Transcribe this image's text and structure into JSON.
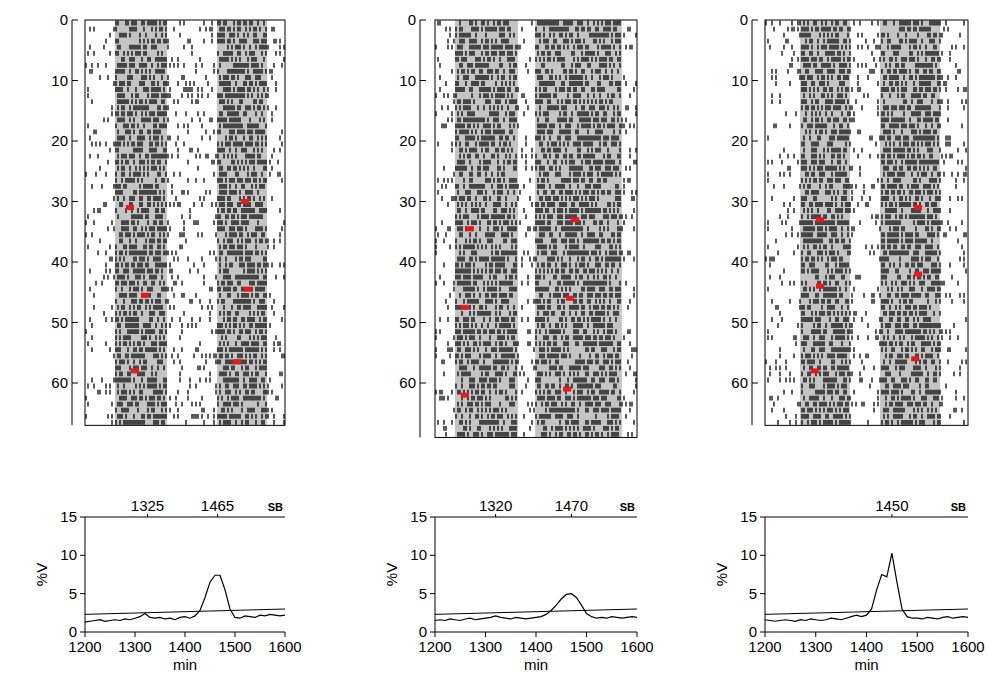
{
  "chart_data": [
    {
      "type": "raster",
      "xlim": [
        0,
        48
      ],
      "ylim": [
        0,
        67
      ],
      "yticks": [
        0,
        10,
        20,
        30,
        40,
        50,
        60
      ],
      "tick_labels": "y",
      "bands": [
        [
          7.2,
          19.7
        ],
        [
          31.7,
          43.7
        ]
      ],
      "markers": {
        "x": [
          10.8,
          14.4,
          12.0,
          38.4,
          39.1,
          36.5
        ],
        "y": [
          31,
          45.5,
          58,
          30,
          44.5,
          56.5
        ],
        "color": "#e8191a"
      }
    },
    {
      "type": "line",
      "xlabel": "min",
      "ylabel": "%V",
      "xlim": [
        1200,
        1600
      ],
      "xticks": [
        1200,
        1300,
        1400,
        1500,
        1600
      ],
      "ylim": [
        0,
        15
      ],
      "yticks": [
        0,
        5,
        10,
        15
      ],
      "peaks": [
        1325,
        1465
      ],
      "annotation": "SB",
      "x": [
        1200,
        1210,
        1220,
        1230,
        1240,
        1250,
        1260,
        1270,
        1280,
        1290,
        1300,
        1310,
        1320,
        1330,
        1340,
        1350,
        1360,
        1370,
        1380,
        1390,
        1400,
        1410,
        1420,
        1430,
        1440,
        1450,
        1460,
        1470,
        1480,
        1490,
        1500,
        1510,
        1520,
        1530,
        1540,
        1550,
        1560,
        1570,
        1580,
        1590,
        1600
      ],
      "series": [
        {
          "color": "#000000",
          "values": [
            1.3,
            1.4,
            1.5,
            1.6,
            1.4,
            1.5,
            1.6,
            1.5,
            1.7,
            1.6,
            1.8,
            2.0,
            2.4,
            1.9,
            1.8,
            1.9,
            1.7,
            1.8,
            1.6,
            1.9,
            2.0,
            1.8,
            2.1,
            2.8,
            4.5,
            6.5,
            7.4,
            7.4,
            5.5,
            3.0,
            1.9,
            1.8,
            2.1,
            2.0,
            1.9,
            2.2,
            2.1,
            2.3,
            2.2,
            2.1,
            2.2
          ]
        }
      ],
      "threshold": {
        "x": [
          1200,
          1600
        ],
        "values": [
          2.3,
          3.0
        ]
      }
    },
    {
      "type": "raster",
      "xlim": [
        0,
        48
      ],
      "ylim": [
        0,
        69
      ],
      "yticks": [
        0,
        10,
        20,
        30,
        40,
        50,
        60
      ],
      "tick_labels": "y",
      "bands": [
        [
          4.75,
          19.7
        ],
        [
          23.8,
          44.4
        ]
      ],
      "markers": {
        "x": [
          8.3,
          7.1,
          7.1,
          33.3,
          32.1,
          31.4
        ],
        "y": [
          34.5,
          47.5,
          62,
          33,
          46,
          61
        ],
        "color": "#e8191a"
      }
    },
    {
      "type": "line",
      "xlabel": "min",
      "ylabel": "%V",
      "xlim": [
        1200,
        1600
      ],
      "xticks": [
        1200,
        1300,
        1400,
        1500,
        1600
      ],
      "ylim": [
        0,
        15
      ],
      "yticks": [
        0,
        5,
        10,
        15
      ],
      "peaks": [
        1320,
        1470
      ],
      "annotation": "SB",
      "x": [
        1200,
        1210,
        1220,
        1230,
        1240,
        1250,
        1260,
        1270,
        1280,
        1290,
        1300,
        1310,
        1320,
        1330,
        1340,
        1350,
        1360,
        1370,
        1380,
        1390,
        1400,
        1410,
        1420,
        1430,
        1440,
        1450,
        1460,
        1470,
        1480,
        1490,
        1500,
        1510,
        1520,
        1530,
        1540,
        1550,
        1560,
        1570,
        1580,
        1590,
        1600
      ],
      "series": [
        {
          "color": "#000000",
          "values": [
            1.5,
            1.6,
            1.5,
            1.7,
            1.6,
            1.5,
            1.7,
            1.8,
            1.6,
            1.7,
            1.8,
            1.9,
            2.1,
            1.9,
            1.8,
            1.7,
            1.9,
            1.8,
            1.7,
            1.8,
            1.9,
            2.0,
            2.3,
            2.8,
            3.5,
            4.3,
            4.9,
            5.0,
            4.5,
            3.5,
            2.4,
            2.0,
            1.8,
            1.9,
            1.8,
            2.0,
            1.9,
            1.8,
            1.9,
            2.0,
            1.9
          ]
        }
      ],
      "threshold": {
        "x": [
          1200,
          1600
        ],
        "values": [
          2.3,
          3.0
        ]
      }
    },
    {
      "type": "raster",
      "xlim": [
        0,
        48
      ],
      "ylim": [
        0,
        67
      ],
      "yticks": [
        0,
        10,
        20,
        30,
        40,
        50,
        60
      ],
      "tick_labels": "y",
      "bands": [
        [
          8.3,
          20.1
        ],
        [
          27.2,
          41.4
        ]
      ],
      "markers": {
        "x": [
          13.0,
          13.0,
          11.8,
          36.2,
          36.2,
          35.5
        ],
        "y": [
          33,
          44,
          58,
          31,
          42,
          56
        ],
        "color": "#e8191a"
      }
    },
    {
      "type": "line",
      "xlabel": "min",
      "ylabel": "%V",
      "xlim": [
        1200,
        1600
      ],
      "xticks": [
        1200,
        1300,
        1400,
        1500,
        1600
      ],
      "ylim": [
        0,
        15
      ],
      "yticks": [
        0,
        5,
        10,
        15
      ],
      "peaks": [
        1450
      ],
      "annotation": "SB",
      "x": [
        1200,
        1210,
        1220,
        1230,
        1240,
        1250,
        1260,
        1270,
        1280,
        1290,
        1300,
        1310,
        1320,
        1330,
        1340,
        1350,
        1360,
        1370,
        1380,
        1390,
        1400,
        1410,
        1420,
        1430,
        1440,
        1450,
        1460,
        1470,
        1480,
        1490,
        1500,
        1510,
        1520,
        1530,
        1540,
        1550,
        1560,
        1570,
        1580,
        1590,
        1600
      ],
      "series": [
        {
          "color": "#000000",
          "values": [
            1.6,
            1.5,
            1.4,
            1.5,
            1.6,
            1.5,
            1.4,
            1.6,
            1.5,
            1.7,
            1.6,
            1.5,
            1.6,
            1.8,
            1.7,
            1.6,
            1.8,
            2.0,
            2.2,
            2.0,
            2.2,
            3.0,
            5.5,
            7.5,
            7.2,
            10.3,
            6.5,
            3.0,
            2.0,
            1.8,
            1.8,
            1.7,
            1.9,
            1.8,
            1.7,
            1.9,
            2.0,
            1.8,
            1.9,
            2.0,
            1.9
          ]
        }
      ],
      "threshold": {
        "x": [
          1200,
          1600
        ],
        "values": [
          2.3,
          3.0
        ]
      }
    }
  ]
}
